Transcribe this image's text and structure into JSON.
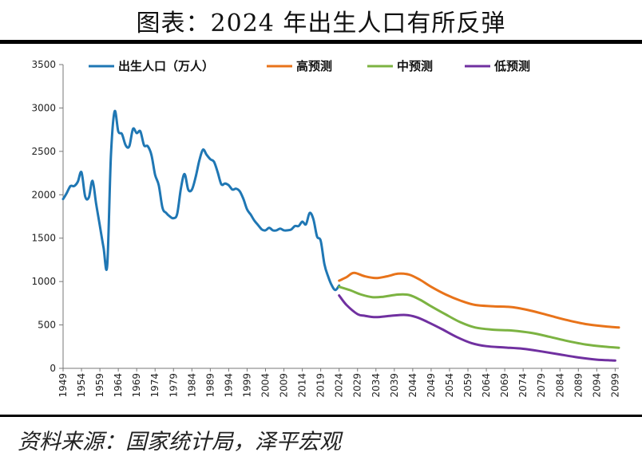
{
  "title": "图表：2024 年出生人口有所反弹",
  "source": "资料来源：国家统计局，泽平宏观",
  "chart_data": {
    "type": "line",
    "ylim": [
      0,
      3500
    ],
    "yticks": [
      0,
      500,
      1000,
      1500,
      2000,
      2500,
      3000,
      3500
    ],
    "xlim": [
      1949,
      2100
    ],
    "xticks": [
      1949,
      1954,
      1959,
      1964,
      1969,
      1974,
      1979,
      1984,
      1989,
      1994,
      1999,
      2004,
      2009,
      2014,
      2019,
      2024,
      2029,
      2034,
      2039,
      2044,
      2049,
      2054,
      2059,
      2064,
      2069,
      2074,
      2079,
      2084,
      2089,
      2094,
      2099
    ],
    "grid": false,
    "legend_position": "top",
    "series": [
      {
        "name": "出生人口（万人）",
        "color": "#1f77b4",
        "points": [
          [
            1949,
            1950
          ],
          [
            1950,
            2020
          ],
          [
            1951,
            2100
          ],
          [
            1952,
            2100
          ],
          [
            1953,
            2150
          ],
          [
            1954,
            2260
          ],
          [
            1955,
            1980
          ],
          [
            1956,
            1970
          ],
          [
            1957,
            2160
          ],
          [
            1958,
            1890
          ],
          [
            1959,
            1640
          ],
          [
            1960,
            1390
          ],
          [
            1961,
            1190
          ],
          [
            1962,
            2450
          ],
          [
            1963,
            2960
          ],
          [
            1964,
            2730
          ],
          [
            1965,
            2700
          ],
          [
            1966,
            2570
          ],
          [
            1967,
            2560
          ],
          [
            1968,
            2760
          ],
          [
            1969,
            2710
          ],
          [
            1970,
            2730
          ],
          [
            1971,
            2570
          ],
          [
            1972,
            2560
          ],
          [
            1973,
            2460
          ],
          [
            1974,
            2230
          ],
          [
            1975,
            2110
          ],
          [
            1976,
            1850
          ],
          [
            1977,
            1790
          ],
          [
            1978,
            1750
          ],
          [
            1979,
            1730
          ],
          [
            1980,
            1780
          ],
          [
            1981,
            2070
          ],
          [
            1982,
            2240
          ],
          [
            1983,
            2060
          ],
          [
            1984,
            2060
          ],
          [
            1985,
            2200
          ],
          [
            1986,
            2390
          ],
          [
            1987,
            2520
          ],
          [
            1988,
            2460
          ],
          [
            1989,
            2410
          ],
          [
            1990,
            2380
          ],
          [
            1991,
            2260
          ],
          [
            1992,
            2120
          ],
          [
            1993,
            2130
          ],
          [
            1994,
            2110
          ],
          [
            1995,
            2060
          ],
          [
            1996,
            2070
          ],
          [
            1997,
            2040
          ],
          [
            1998,
            1950
          ],
          [
            1999,
            1830
          ],
          [
            2000,
            1770
          ],
          [
            2001,
            1700
          ],
          [
            2002,
            1650
          ],
          [
            2003,
            1600
          ],
          [
            2004,
            1590
          ],
          [
            2005,
            1620
          ],
          [
            2006,
            1590
          ],
          [
            2007,
            1590
          ],
          [
            2008,
            1610
          ],
          [
            2009,
            1590
          ],
          [
            2010,
            1590
          ],
          [
            2011,
            1600
          ],
          [
            2012,
            1640
          ],
          [
            2013,
            1640
          ],
          [
            2014,
            1690
          ],
          [
            2015,
            1660
          ],
          [
            2016,
            1790
          ],
          [
            2017,
            1720
          ],
          [
            2018,
            1520
          ],
          [
            2019,
            1470
          ],
          [
            2020,
            1200
          ],
          [
            2021,
            1060
          ],
          [
            2022,
            956
          ],
          [
            2023,
            902
          ],
          [
            2024,
            954
          ]
        ]
      },
      {
        "name": "高预测",
        "color": "#e8731a",
        "points": [
          [
            2024,
            1010
          ],
          [
            2026,
            1050
          ],
          [
            2028,
            1100
          ],
          [
            2031,
            1060
          ],
          [
            2034,
            1040
          ],
          [
            2037,
            1060
          ],
          [
            2040,
            1090
          ],
          [
            2043,
            1080
          ],
          [
            2046,
            1020
          ],
          [
            2049,
            940
          ],
          [
            2053,
            850
          ],
          [
            2057,
            780
          ],
          [
            2061,
            730
          ],
          [
            2066,
            715
          ],
          [
            2071,
            705
          ],
          [
            2076,
            665
          ],
          [
            2081,
            610
          ],
          [
            2086,
            555
          ],
          [
            2091,
            510
          ],
          [
            2096,
            485
          ],
          [
            2100,
            470
          ]
        ]
      },
      {
        "name": "中预测",
        "color": "#7cb342",
        "points": [
          [
            2024,
            940
          ],
          [
            2027,
            900
          ],
          [
            2030,
            850
          ],
          [
            2033,
            820
          ],
          [
            2036,
            825
          ],
          [
            2040,
            850
          ],
          [
            2043,
            845
          ],
          [
            2046,
            790
          ],
          [
            2049,
            715
          ],
          [
            2053,
            620
          ],
          [
            2057,
            530
          ],
          [
            2061,
            470
          ],
          [
            2066,
            445
          ],
          [
            2071,
            435
          ],
          [
            2076,
            410
          ],
          [
            2081,
            365
          ],
          [
            2086,
            315
          ],
          [
            2091,
            275
          ],
          [
            2096,
            250
          ],
          [
            2100,
            237
          ]
        ]
      },
      {
        "name": "低预测",
        "color": "#7030a0",
        "points": [
          [
            2024,
            840
          ],
          [
            2026,
            730
          ],
          [
            2029,
            625
          ],
          [
            2031,
            605
          ],
          [
            2034,
            590
          ],
          [
            2038,
            605
          ],
          [
            2042,
            615
          ],
          [
            2045,
            590
          ],
          [
            2048,
            535
          ],
          [
            2052,
            450
          ],
          [
            2056,
            360
          ],
          [
            2060,
            290
          ],
          [
            2064,
            255
          ],
          [
            2069,
            240
          ],
          [
            2074,
            225
          ],
          [
            2079,
            195
          ],
          [
            2084,
            160
          ],
          [
            2089,
            125
          ],
          [
            2094,
            100
          ],
          [
            2099,
            90
          ]
        ]
      }
    ]
  }
}
